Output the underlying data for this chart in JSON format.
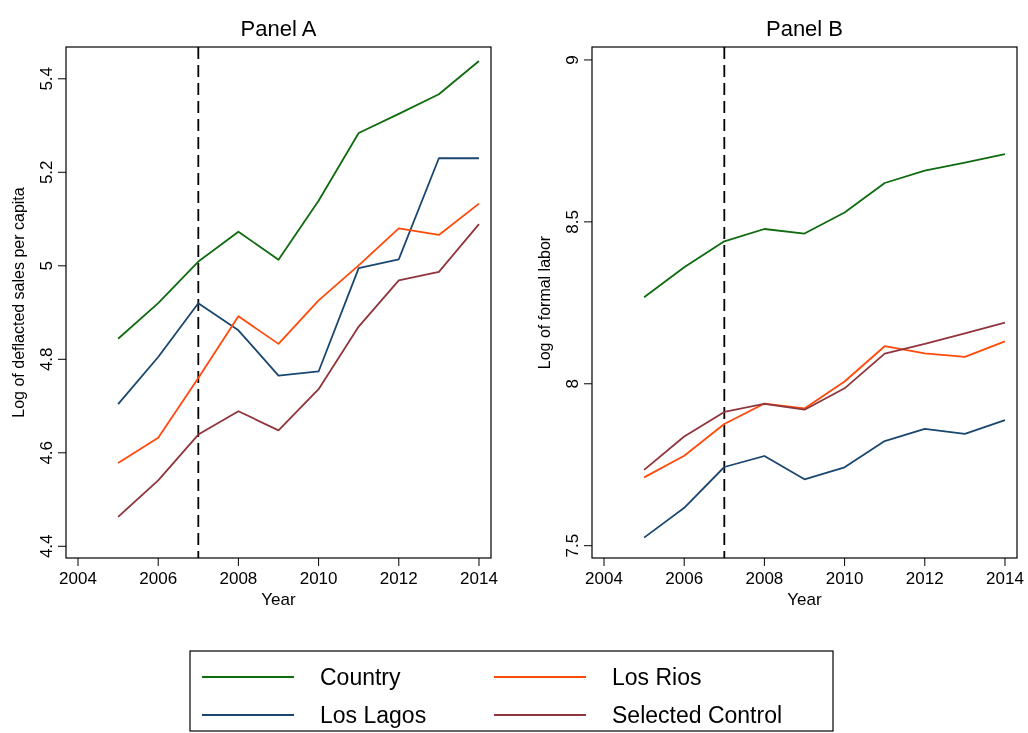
{
  "chart_data": [
    {
      "type": "line",
      "title": "Panel A",
      "xlabel": "Year",
      "ylabel": "Log of deflacted sales per capita",
      "x": [
        2005,
        2006,
        2007,
        2008,
        2009,
        2010,
        2011,
        2012,
        2013,
        2014
      ],
      "xlim": [
        2003.7,
        2014.3
      ],
      "xticks": [
        2004,
        2006,
        2008,
        2010,
        2012,
        2014
      ],
      "ylim": [
        4.375,
        5.468
      ],
      "yticks": [
        4.4,
        4.6,
        4.8,
        5,
        5.2,
        5.4
      ],
      "grid": false,
      "legend": "bottom",
      "ref_lines": [
        {
          "axis": "x",
          "value": 2007,
          "color": "#000000",
          "line_style": "dashed"
        }
      ],
      "series": [
        {
          "name": "Country",
          "color": "#0f6b0f",
          "values": [
            4.844,
            4.92,
            5.009,
            5.073,
            5.013,
            5.139,
            5.284,
            5.325,
            5.367,
            5.438
          ]
        },
        {
          "name": "Los Lagos",
          "color": "#1a476f",
          "values": [
            4.704,
            4.805,
            4.92,
            4.862,
            4.765,
            4.774,
            4.995,
            5.014,
            5.23,
            5.23
          ]
        },
        {
          "name": "Los Rios",
          "color": "#ff4a0a",
          "values": [
            4.578,
            4.632,
            4.76,
            4.892,
            4.833,
            4.926,
            5.001,
            5.08,
            5.066,
            5.133
          ]
        },
        {
          "name": "Selected Control",
          "color": "#90353b",
          "values": [
            4.463,
            4.541,
            4.639,
            4.689,
            4.648,
            4.736,
            4.87,
            4.969,
            4.987,
            5.089
          ]
        }
      ]
    },
    {
      "type": "line",
      "title": "Panel B",
      "xlabel": "Year",
      "ylabel": "Log of formal labor",
      "x": [
        2005,
        2006,
        2007,
        2008,
        2009,
        2010,
        2011,
        2012,
        2013,
        2014
      ],
      "xlim": [
        2003.7,
        2014.3
      ],
      "xticks": [
        2004,
        2006,
        2008,
        2010,
        2012,
        2014
      ],
      "ylim": [
        7.462,
        9.04
      ],
      "yticks": [
        7.5,
        8,
        8.5,
        9
      ],
      "grid": false,
      "ref_lines": [
        {
          "axis": "x",
          "value": 2007,
          "color": "#000000",
          "line_style": "dashed"
        }
      ],
      "series": [
        {
          "color": "#0f6b0f",
          "values": [
            8.267,
            8.36,
            8.44,
            8.478,
            8.464,
            8.529,
            8.62,
            8.658,
            8.683,
            8.709
          ]
        },
        {
          "color": "#1a476f",
          "values": [
            7.525,
            7.617,
            7.743,
            7.777,
            7.705,
            7.742,
            7.823,
            7.861,
            7.845,
            7.888
          ]
        },
        {
          "color": "#ff4a0a",
          "values": [
            7.711,
            7.778,
            7.876,
            7.939,
            7.924,
            8.007,
            8.116,
            8.094,
            8.083,
            8.131
          ]
        },
        {
          "color": "#90353b",
          "values": [
            7.734,
            7.837,
            7.913,
            7.938,
            7.92,
            7.986,
            8.093,
            8.123,
            8.156,
            8.189
          ]
        }
      ]
    }
  ]
}
